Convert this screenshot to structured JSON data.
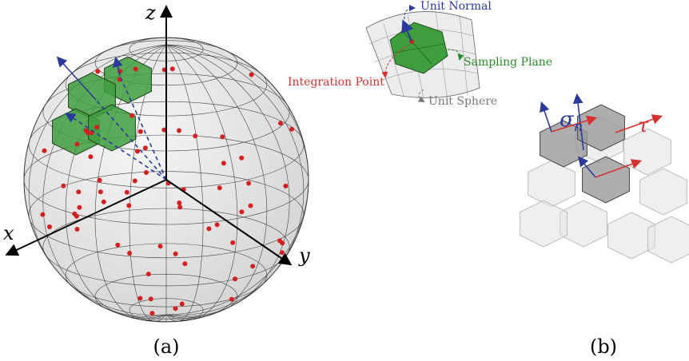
{
  "panel_a": {
    "axes": {
      "x": "x",
      "y": "y",
      "z": "z"
    },
    "caption": "(a)"
  },
  "panel_b": {
    "inset_labels": {
      "unit_normal": "Unit Normal",
      "sampling_plane": "Sampling Plane",
      "integration_point": "Integration Point",
      "unit_sphere": "Unit Sphere"
    },
    "sigma": "σ",
    "sigma_sub": "n",
    "tau": "τ",
    "caption": "(b)"
  }
}
